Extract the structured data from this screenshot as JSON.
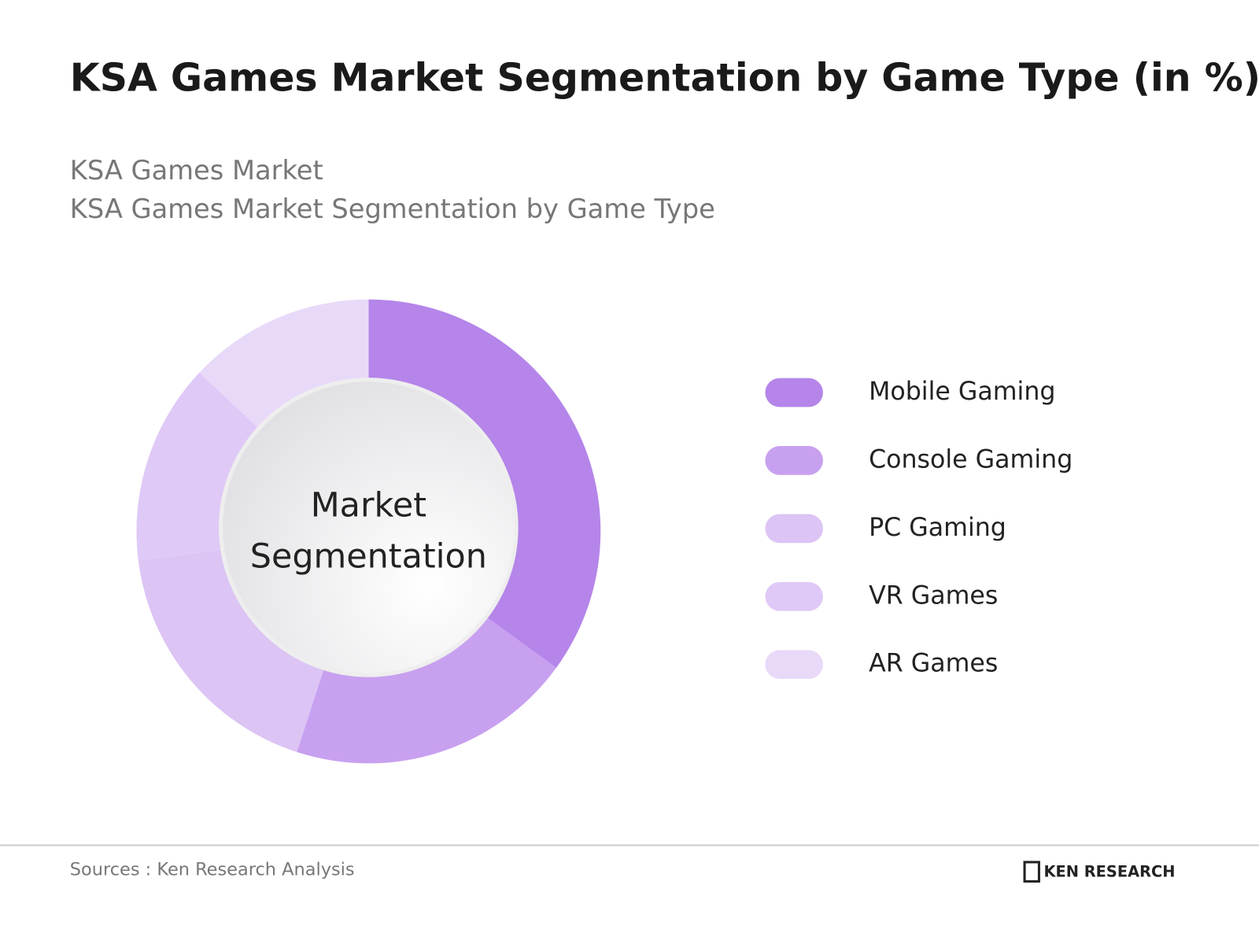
{
  "chart_data": {
    "type": "pie",
    "title": "KSA Games Market Segmentation by Game Type (in %)",
    "subtitle": [
      "KSA Games Market",
      "KSA Games Market Segmentation by Game Type"
    ],
    "center_text": [
      "Market",
      "Segmentation"
    ],
    "categories": [
      "Mobile Gaming",
      "Console Gaming",
      "PC Gaming",
      "VR Games",
      "AR Games"
    ],
    "values": [
      35,
      20,
      18,
      14,
      13
    ],
    "colors": [
      "#b585ea",
      "#c8a0f0",
      "#dcc4f5",
      "#dfc9f6",
      "#e8d9f9"
    ],
    "source": "Sources : Ken Research Analysis",
    "brand": "KEN RESEARCH"
  }
}
